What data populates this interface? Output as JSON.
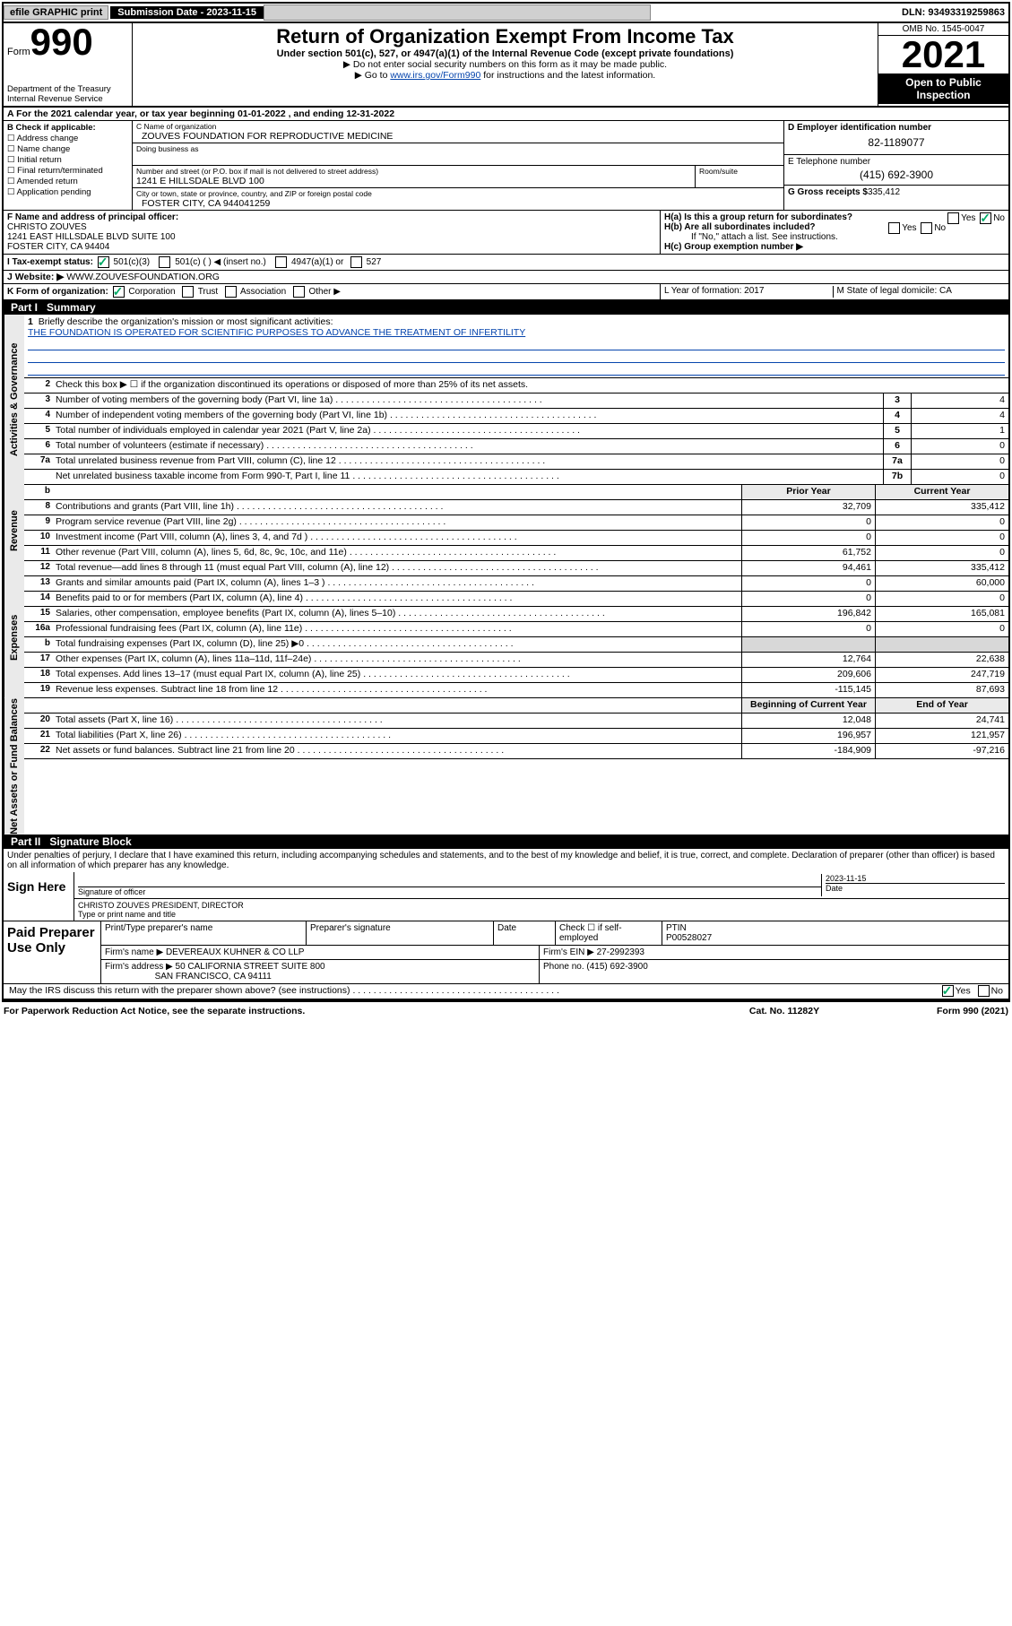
{
  "topbar": {
    "efile": "efile GRAPHIC print",
    "subdate_label": "Submission Date - 2023-11-15",
    "dln": "DLN: 93493319259863"
  },
  "header": {
    "form_prefix": "Form",
    "form_num": "990",
    "dept": "Department of the Treasury\nInternal Revenue Service",
    "title": "Return of Organization Exempt From Income Tax",
    "sub": "Under section 501(c), 527, or 4947(a)(1) of the Internal Revenue Code (except private foundations)",
    "note1": "▶ Do not enter social security numbers on this form as it may be made public.",
    "note2_pre": "▶ Go to ",
    "note2_link": "www.irs.gov/Form990",
    "note2_post": " for instructions and the latest information.",
    "omb": "OMB No. 1545-0047",
    "year": "2021",
    "inspect": "Open to Public Inspection"
  },
  "rowA": "A For the 2021 calendar year, or tax year beginning 01-01-2022   , and ending 12-31-2022",
  "B": {
    "label": "B Check if applicable:",
    "items": [
      "Address change",
      "Name change",
      "Initial return",
      "Final return/terminated",
      "Amended return",
      "Application pending"
    ]
  },
  "C": {
    "name_lbl": "C Name of organization",
    "name": "ZOUVES FOUNDATION FOR REPRODUCTIVE MEDICINE",
    "dba_lbl": "Doing business as",
    "street_lbl": "Number and street (or P.O. box if mail is not delivered to street address)",
    "street": "1241 E HILLSDALE BLVD 100",
    "room_lbl": "Room/suite",
    "city_lbl": "City or town, state or province, country, and ZIP or foreign postal code",
    "city": "FOSTER CITY, CA  944041259"
  },
  "D": {
    "ein_lbl": "D Employer identification number",
    "ein": "82-1189077",
    "tel_lbl": "E Telephone number",
    "tel": "(415) 692-3900",
    "gross_lbl": "G Gross receipts $",
    "gross": "335,412"
  },
  "F": {
    "lbl": "F Name and address of principal officer:",
    "name": "CHRISTO ZOUVES",
    "addr1": "1241 EAST HILLSDALE BLVD SUITE 100",
    "addr2": "FOSTER CITY, CA  94404"
  },
  "H": {
    "a": "H(a) Is this a group return for subordinates?",
    "a_no": true,
    "b": "H(b) Are all subordinates included?",
    "b_note": "If \"No,\" attach a list. See instructions.",
    "c": "H(c) Group exemption number ▶"
  },
  "I": {
    "lbl": "I   Tax-exempt status:",
    "c3": "501(c)(3)",
    "c": "501(c) (  ) ◀ (insert no.)",
    "a4947": "4947(a)(1) or",
    "s527": "527"
  },
  "J": {
    "lbl": "J   Website: ▶",
    "val": "WWW.ZOUVESFOUNDATION.ORG"
  },
  "K": {
    "lbl": "K Form of organization:",
    "corp": "Corporation",
    "trust": "Trust",
    "assoc": "Association",
    "other": "Other ▶"
  },
  "L": {
    "lbl": "L Year of formation: 2017"
  },
  "M": {
    "lbl": "M State of legal domicile: CA"
  },
  "part1": {
    "label": "Part I",
    "title": "Summary"
  },
  "s1": {
    "l1_lbl": "Briefly describe the organization's mission or most significant activities:",
    "l1_val": "THE FOUNDATION IS OPERATED FOR SCIENTIFIC PURPOSES TO ADVANCE THE TREATMENT OF INFERTILITY",
    "l2": "Check this box ▶ ☐ if the organization discontinued its operations or disposed of more than 25% of its net assets.",
    "rows": [
      {
        "n": "3",
        "d": "Number of voting members of the governing body (Part VI, line 1a)",
        "bn": "3",
        "bv": "4"
      },
      {
        "n": "4",
        "d": "Number of independent voting members of the governing body (Part VI, line 1b)",
        "bn": "4",
        "bv": "4"
      },
      {
        "n": "5",
        "d": "Total number of individuals employed in calendar year 2021 (Part V, line 2a)",
        "bn": "5",
        "bv": "1"
      },
      {
        "n": "6",
        "d": "Total number of volunteers (estimate if necessary)",
        "bn": "6",
        "bv": "0"
      },
      {
        "n": "7a",
        "d": "Total unrelated business revenue from Part VIII, column (C), line 12",
        "bn": "7a",
        "bv": "0"
      },
      {
        "n": "",
        "d": "Net unrelated business taxable income from Form 990-T, Part I, line 11",
        "bn": "7b",
        "bv": "0"
      }
    ]
  },
  "rev": {
    "hdr_prior": "Prior Year",
    "hdr_curr": "Current Year",
    "rows": [
      {
        "n": "8",
        "d": "Contributions and grants (Part VIII, line 1h)",
        "p": "32,709",
        "c": "335,412"
      },
      {
        "n": "9",
        "d": "Program service revenue (Part VIII, line 2g)",
        "p": "0",
        "c": "0"
      },
      {
        "n": "10",
        "d": "Investment income (Part VIII, column (A), lines 3, 4, and 7d )",
        "p": "0",
        "c": "0"
      },
      {
        "n": "11",
        "d": "Other revenue (Part VIII, column (A), lines 5, 6d, 8c, 9c, 10c, and 11e)",
        "p": "61,752",
        "c": "0"
      },
      {
        "n": "12",
        "d": "Total revenue—add lines 8 through 11 (must equal Part VIII, column (A), line 12)",
        "p": "94,461",
        "c": "335,412"
      }
    ]
  },
  "exp": {
    "rows": [
      {
        "n": "13",
        "d": "Grants and similar amounts paid (Part IX, column (A), lines 1–3 )",
        "p": "0",
        "c": "60,000"
      },
      {
        "n": "14",
        "d": "Benefits paid to or for members (Part IX, column (A), line 4)",
        "p": "0",
        "c": "0"
      },
      {
        "n": "15",
        "d": "Salaries, other compensation, employee benefits (Part IX, column (A), lines 5–10)",
        "p": "196,842",
        "c": "165,081"
      },
      {
        "n": "16a",
        "d": "Professional fundraising fees (Part IX, column (A), line 11e)",
        "p": "0",
        "c": "0"
      },
      {
        "n": "b",
        "d": "Total fundraising expenses (Part IX, column (D), line 25) ▶0",
        "p": "",
        "c": "",
        "gray": true
      },
      {
        "n": "17",
        "d": "Other expenses (Part IX, column (A), lines 11a–11d, 11f–24e)",
        "p": "12,764",
        "c": "22,638"
      },
      {
        "n": "18",
        "d": "Total expenses. Add lines 13–17 (must equal Part IX, column (A), line 25)",
        "p": "209,606",
        "c": "247,719"
      },
      {
        "n": "19",
        "d": "Revenue less expenses. Subtract line 18 from line 12",
        "p": "-115,145",
        "c": "87,693"
      }
    ]
  },
  "net": {
    "hdr_beg": "Beginning of Current Year",
    "hdr_end": "End of Year",
    "rows": [
      {
        "n": "20",
        "d": "Total assets (Part X, line 16)",
        "p": "12,048",
        "c": "24,741"
      },
      {
        "n": "21",
        "d": "Total liabilities (Part X, line 26)",
        "p": "196,957",
        "c": "121,957"
      },
      {
        "n": "22",
        "d": "Net assets or fund balances. Subtract line 21 from line 20",
        "p": "-184,909",
        "c": "-97,216"
      }
    ]
  },
  "part2": {
    "label": "Part II",
    "title": "Signature Block"
  },
  "sig": {
    "decl": "Under penalties of perjury, I declare that I have examined this return, including accompanying schedules and statements, and to the best of my knowledge and belief, it is true, correct, and complete. Declaration of preparer (other than officer) is based on all information of which preparer has any knowledge.",
    "sign_here": "Sign Here",
    "sig_of": "Signature of officer",
    "date": "2023-11-15",
    "date_lbl": "Date",
    "name": "CHRISTO ZOUVES PRESIDENT, DIRECTOR",
    "name_lbl": "Type or print name and title"
  },
  "paid": {
    "label": "Paid Preparer Use Only",
    "h1": "Print/Type preparer's name",
    "h2": "Preparer's signature",
    "h3": "Date",
    "h4": "Check ☐ if self-employed",
    "h5": "PTIN",
    "ptin": "P00528027",
    "firm_lbl": "Firm's name     ▶",
    "firm": "DEVEREAUX KUHNER & CO LLP",
    "ein_lbl": "Firm's EIN ▶",
    "ein": "27-2992393",
    "addr_lbl": "Firm's address ▶",
    "addr1": "50 CALIFORNIA STREET SUITE 800",
    "addr2": "SAN FRANCISCO, CA  94111",
    "phone_lbl": "Phone no.",
    "phone": "(415) 692-3900"
  },
  "discuss": "May the IRS discuss this return with the preparer shown above? (see instructions)",
  "footer": {
    "a": "For Paperwork Reduction Act Notice, see the separate instructions.",
    "b": "Cat. No. 11282Y",
    "c": "Form 990 (2021)"
  },
  "tabs": {
    "gov": "Activities & Governance",
    "rev": "Revenue",
    "exp": "Expenses",
    "net": "Net Assets or Fund Balances"
  }
}
